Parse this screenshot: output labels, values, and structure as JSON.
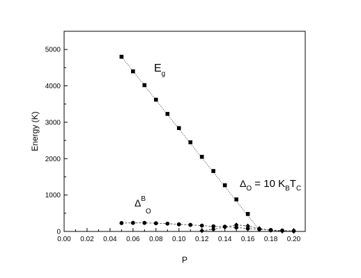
{
  "chart_data": {
    "type": "scatter",
    "title": "",
    "xlabel": "P",
    "ylabel": "Energy (K)",
    "xlim": [
      0.0,
      0.21
    ],
    "ylim": [
      0,
      5500
    ],
    "x_ticks": [
      "0.00",
      "0.02",
      "0.04",
      "0.06",
      "0.08",
      "0.10",
      "0.12",
      "0.14",
      "0.16",
      "0.18",
      "0.20"
    ],
    "x_tick_values": [
      0.0,
      0.02,
      0.04,
      0.06,
      0.08,
      0.1,
      0.12,
      0.14,
      0.16,
      0.18,
      0.2
    ],
    "y_ticks": [
      "0",
      "1000",
      "2000",
      "3000",
      "4000",
      "5000"
    ],
    "y_tick_values": [
      0,
      1000,
      2000,
      3000,
      4000,
      5000
    ],
    "grid": false,
    "series": [
      {
        "name": "Eg",
        "marker": "square",
        "x": [
          0.05,
          0.06,
          0.07,
          0.08,
          0.09,
          0.1,
          0.11,
          0.12,
          0.13,
          0.14,
          0.15,
          0.16
        ],
        "y": [
          4800,
          4400,
          4020,
          3620,
          3230,
          2840,
          2450,
          2050,
          1660,
          1270,
          880,
          480
        ],
        "fit_line": {
          "x": [
            0.05,
            0.171
          ],
          "y": [
            4800,
            0
          ]
        }
      },
      {
        "name": "ΔOB",
        "marker": "circle",
        "x": [
          0.05,
          0.06,
          0.07,
          0.08,
          0.09,
          0.1,
          0.11,
          0.12,
          0.13,
          0.14,
          0.15,
          0.16,
          0.17,
          0.18,
          0.19,
          0.2
        ],
        "y": [
          230,
          235,
          235,
          225,
          215,
          195,
          180,
          160,
          140,
          130,
          110,
          80,
          60,
          40,
          25,
          15
        ]
      },
      {
        "name": "ΔO = 10 KBTC",
        "marker": "diamond",
        "x": [
          0.12,
          0.13,
          0.14,
          0.15,
          0.16,
          0.17,
          0.18,
          0.19,
          0.2
        ],
        "y": [
          20,
          60,
          120,
          180,
          150,
          80,
          30,
          10,
          5
        ]
      }
    ],
    "annotations": [
      {
        "id": "eg",
        "base": "E",
        "sub": "g",
        "at_x": 0.077,
        "at_y": 4370
      },
      {
        "id": "delta-b",
        "base": "Δ",
        "sup": "B",
        "sub": "O",
        "at_x": 0.062,
        "at_y": 700
      },
      {
        "id": "delta-o",
        "text_parts": [
          "Δ",
          "O",
          " = 10 K",
          "B",
          "T",
          "C"
        ],
        "at_x": 0.148,
        "at_y": 1280
      }
    ]
  }
}
